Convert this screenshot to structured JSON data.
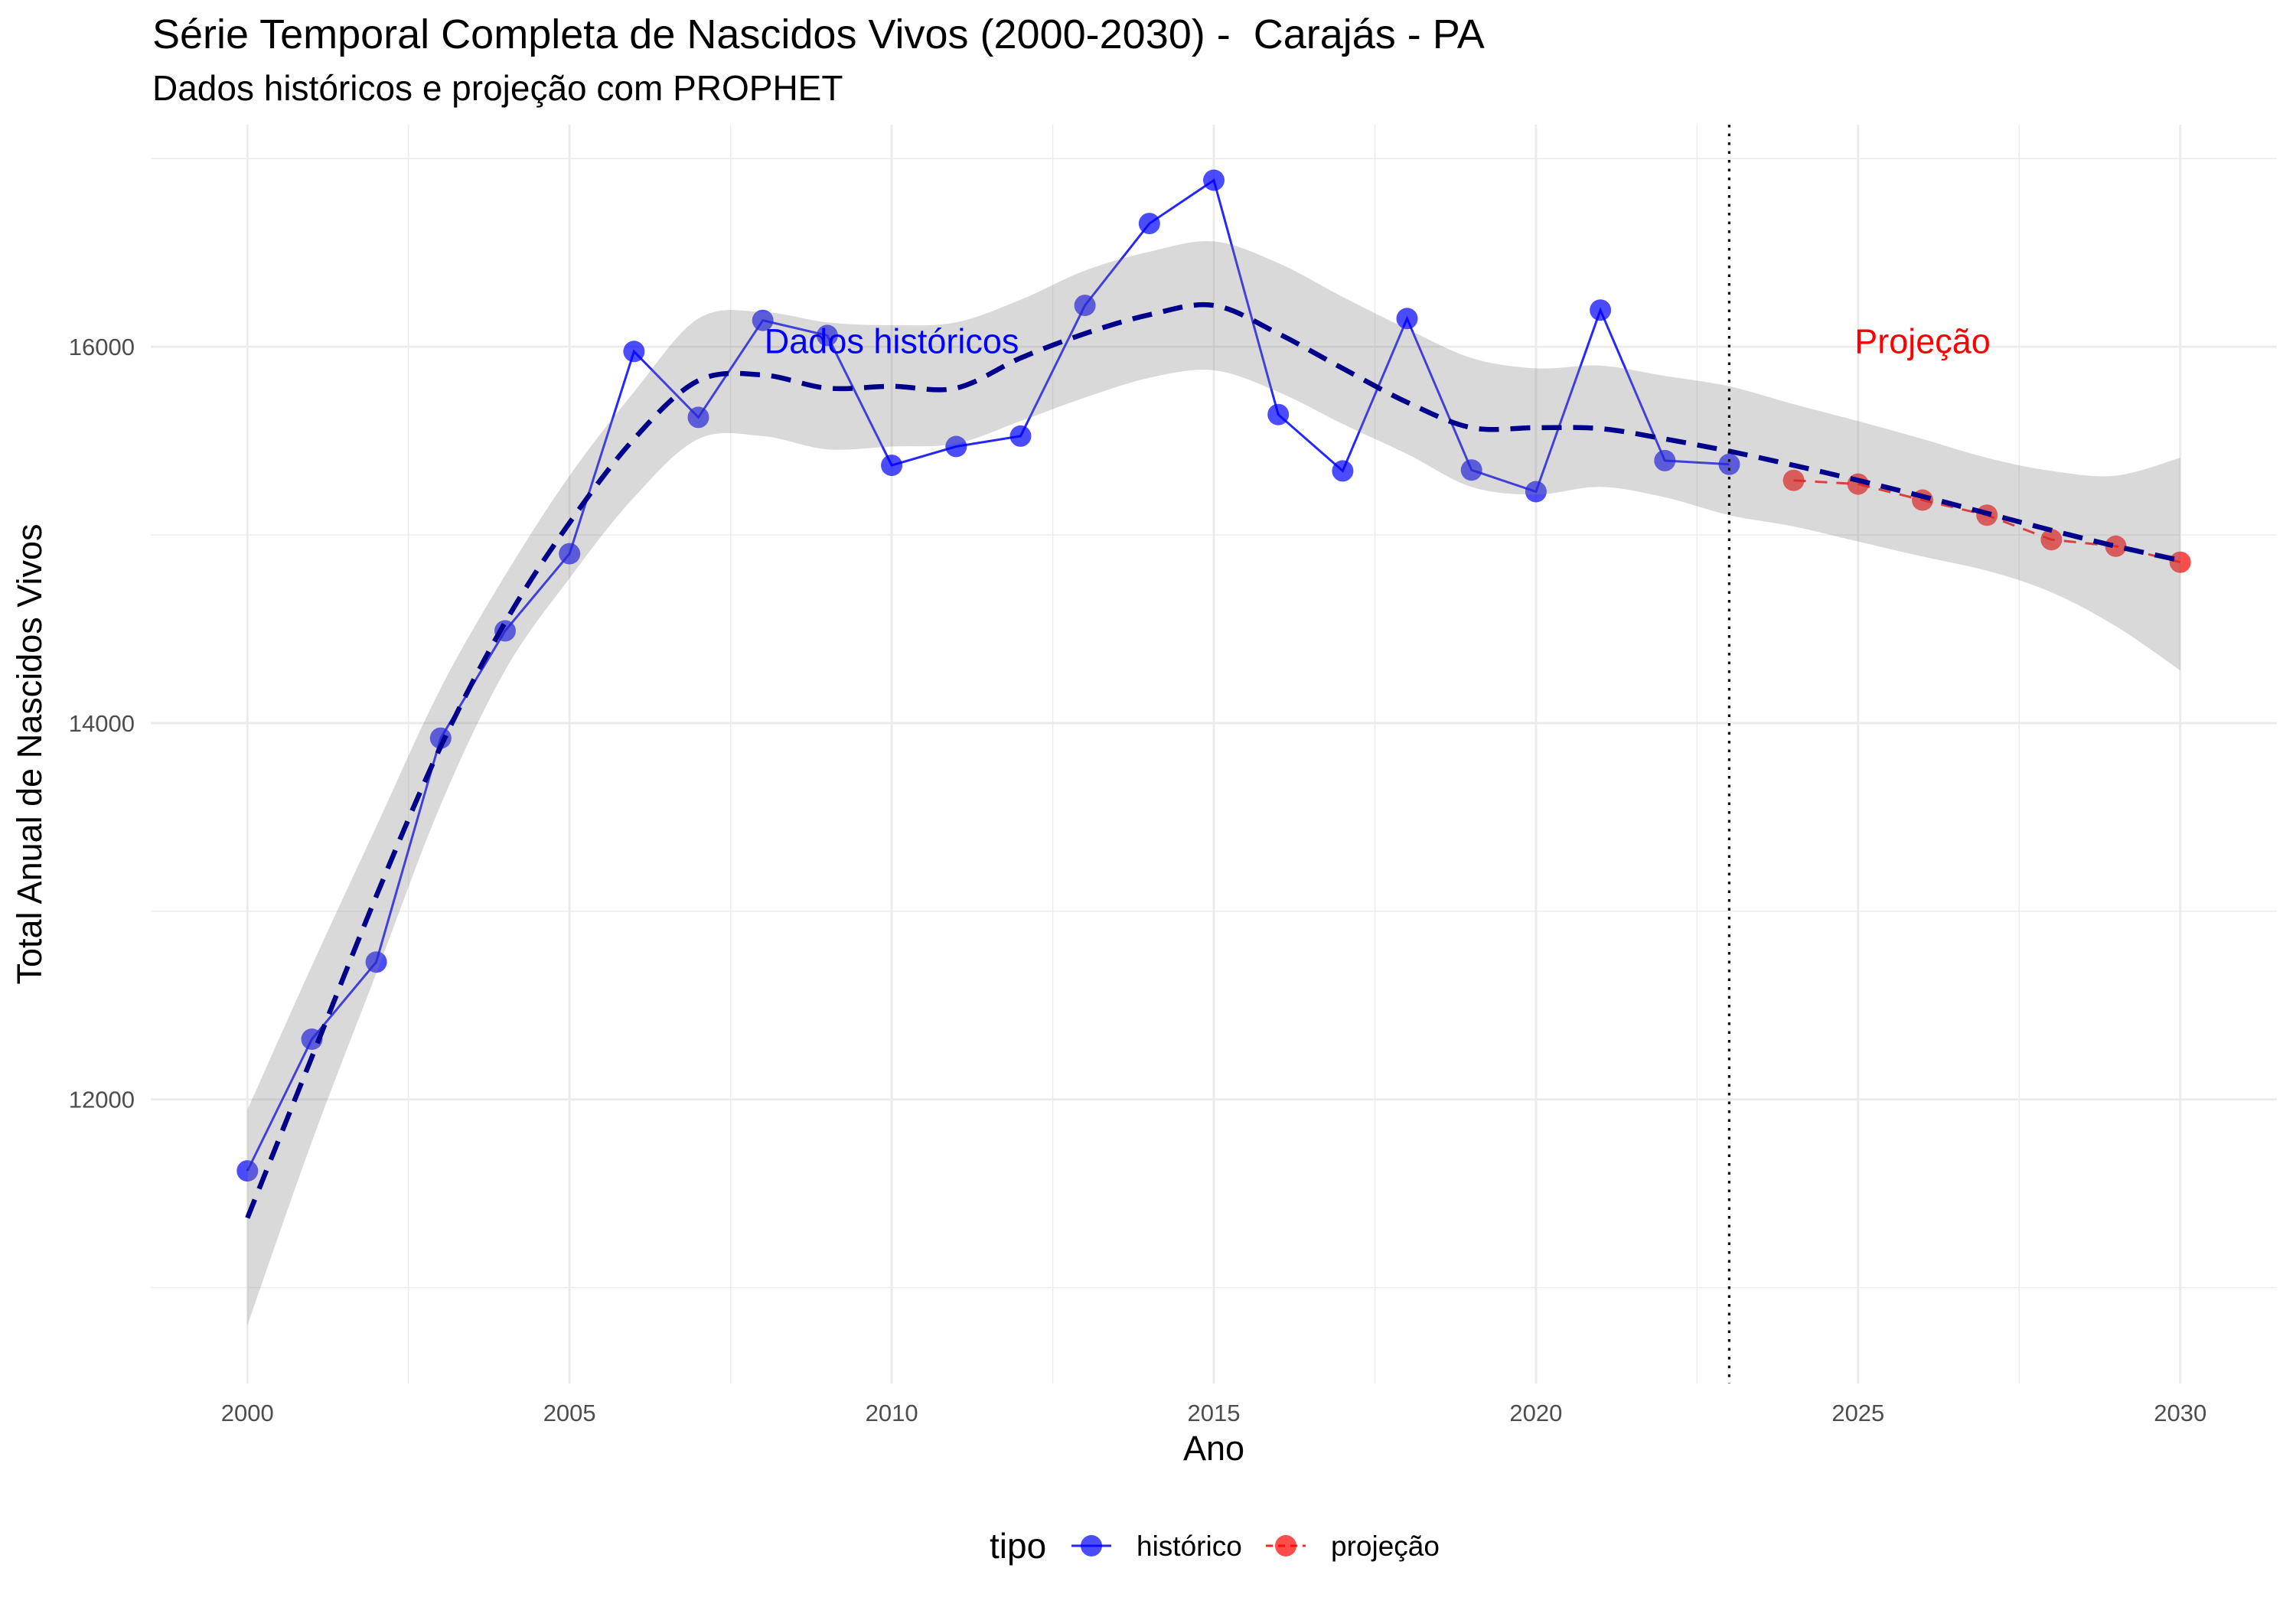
{
  "chart_data": {
    "type": "line",
    "title": "Série Temporal Completa de Nascidos Vivos (2000-2030) -  Carajás - PA",
    "subtitle": "Dados históricos e projeção com PROPHET",
    "xlabel": "Ano",
    "ylabel": "Total Anual de Nascidos Vivos",
    "xlim": [
      1998.5,
      2031.5
    ],
    "ylim": [
      10490,
      17180
    ],
    "x_ticks": [
      2000,
      2005,
      2010,
      2015,
      2020,
      2025,
      2030
    ],
    "x_tick_labels": [
      "2000",
      "2005",
      "2010",
      "2015",
      "2020",
      "2025",
      "2030"
    ],
    "x_minor_breaks": [
      2002.5,
      2007.5,
      2012.5,
      2017.5,
      2022.5,
      2027.5
    ],
    "y_ticks": [
      12000,
      14000,
      16000
    ],
    "y_tick_labels": [
      "12000",
      "14000",
      "16000"
    ],
    "y_minor_breaks": [
      11000,
      13000,
      15000,
      17000
    ],
    "grid": true,
    "legend": {
      "title": "tipo",
      "position": "bottom"
    },
    "series": [
      {
        "name": "histórico",
        "color": "#0000FF",
        "style": "solid",
        "x": [
          2000,
          2001,
          2002,
          2003,
          2004,
          2005,
          2006,
          2007,
          2008,
          2009,
          2010,
          2011,
          2012,
          2013,
          2014,
          2015,
          2016,
          2017,
          2018,
          2019,
          2020,
          2021,
          2022,
          2023
        ],
        "y": [
          11620,
          12320,
          12730,
          13920,
          14490,
          14900,
          15975,
          15625,
          16140,
          16060,
          15370,
          15470,
          15525,
          16220,
          16655,
          16885,
          15640,
          15340,
          16150,
          15345,
          15230,
          16195,
          15395,
          15375
        ]
      },
      {
        "name": "projeção",
        "color": "#FF0000",
        "style": "dashed",
        "x": [
          2024,
          2025,
          2026,
          2027,
          2028,
          2029,
          2030
        ],
        "y": [
          15290,
          15270,
          15185,
          15105,
          14975,
          14940,
          14855
        ]
      }
    ],
    "trend": {
      "color": "#00008B",
      "style": "dashed",
      "x": [
        2000,
        2001,
        2002,
        2003,
        2004,
        2005,
        2006,
        2007,
        2008,
        2009,
        2010,
        2011,
        2012,
        2013,
        2014,
        2015,
        2016,
        2017,
        2018,
        2019,
        2020,
        2021,
        2022,
        2023,
        2024,
        2025,
        2026,
        2027,
        2028,
        2029,
        2030
      ],
      "y": [
        11370,
        12225,
        13080,
        13875,
        14535,
        15065,
        15510,
        15820,
        15850,
        15780,
        15790,
        15780,
        15940,
        16070,
        16170,
        16220,
        16070,
        15885,
        15705,
        15570,
        15570,
        15565,
        15510,
        15445,
        15370,
        15290,
        15205,
        15115,
        15025,
        14940,
        14865
      ]
    },
    "interval": {
      "color": "#808080",
      "x": [
        2000,
        2001,
        2002,
        2003,
        2004,
        2005,
        2006,
        2007,
        2008,
        2009,
        2010,
        2011,
        2012,
        2013,
        2014,
        2015,
        2016,
        2017,
        2018,
        2019,
        2020,
        2021,
        2022,
        2023,
        2024,
        2025,
        2026,
        2027,
        2028,
        2029,
        2030
      ],
      "upper": [
        11945,
        12710,
        13450,
        14185,
        14785,
        15315,
        15760,
        16150,
        16185,
        16130,
        16115,
        16130,
        16250,
        16405,
        16505,
        16560,
        16445,
        16265,
        16095,
        15940,
        15885,
        15900,
        15845,
        15790,
        15695,
        15605,
        15510,
        15410,
        15340,
        15315,
        15410
      ],
      "lower": [
        10800,
        11775,
        12670,
        13565,
        14280,
        14770,
        15200,
        15510,
        15525,
        15455,
        15470,
        15485,
        15605,
        15730,
        15835,
        15875,
        15760,
        15590,
        15430,
        15255,
        15215,
        15255,
        15200,
        15105,
        15045,
        14965,
        14885,
        14810,
        14695,
        14515,
        14280
      ]
    },
    "vline": {
      "x": 2023,
      "color": "#000000",
      "style": "dotted"
    },
    "annotations": [
      {
        "text": "Dados históricos",
        "x": 2010,
        "y": 16030,
        "color": "#0000FF"
      },
      {
        "text": "Projeção",
        "x": 2026,
        "y": 16030,
        "color": "#FF0000"
      }
    ]
  }
}
